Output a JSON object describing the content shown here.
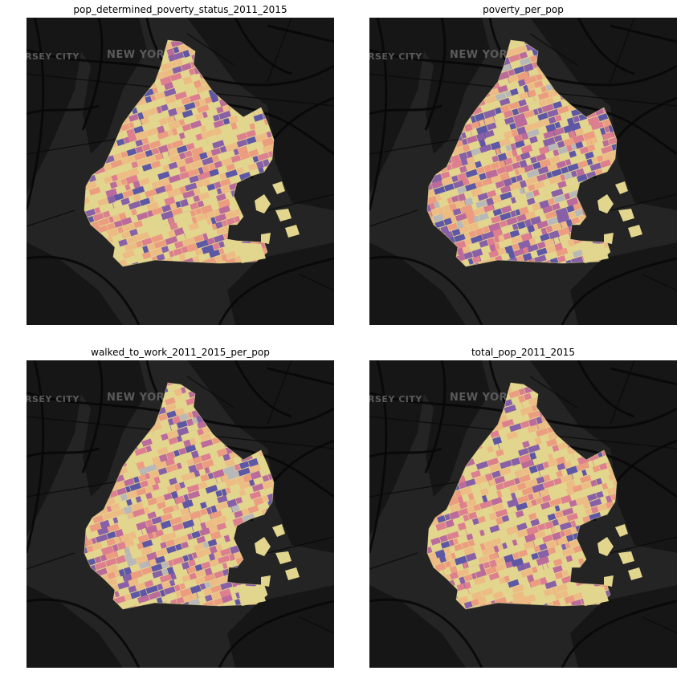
{
  "figure": {
    "panels": [
      {
        "id": "p1",
        "title": "pop_determined_poverty_status_2011_2015",
        "basemap_labels": {
          "city_left": "RSEY CITY",
          "city_center": "NEW YORK"
        },
        "palette": [
          "#e2d58e",
          "#edbb84",
          "#ec9d80",
          "#dd7f8f",
          "#bb6b9b",
          "#8860a8",
          "#5e57a6"
        ],
        "palette_weights": [
          0.36,
          0.18,
          0.14,
          0.1,
          0.09,
          0.07,
          0.06
        ],
        "nodata_color": "#b8b8b8",
        "nodata_share": 0.0,
        "seed": 11
      },
      {
        "id": "p2",
        "title": "poverty_per_pop",
        "basemap_labels": {
          "city_left": "RSEY CITY",
          "city_center": "NEW YORK"
        },
        "palette": [
          "#e2d58e",
          "#edbb84",
          "#ec9d80",
          "#dd7f8f",
          "#bb6b9b",
          "#8860a8",
          "#5e57a6"
        ],
        "palette_weights": [
          0.2,
          0.16,
          0.15,
          0.12,
          0.12,
          0.12,
          0.13
        ],
        "nodata_color": "#b8b8b8",
        "nodata_share": 0.05,
        "seed": 23
      },
      {
        "id": "p3",
        "title": "walked_to_work_2011_2015_per_pop",
        "basemap_labels": {
          "city_left": "RSEY CITY",
          "city_center": "NEW YORK"
        },
        "palette": [
          "#e2d58e",
          "#edbb84",
          "#ec9d80",
          "#dd7f8f",
          "#bb6b9b",
          "#8860a8",
          "#5e57a6"
        ],
        "palette_weights": [
          0.34,
          0.18,
          0.12,
          0.1,
          0.09,
          0.09,
          0.08
        ],
        "nodata_color": "#b8b8b8",
        "nodata_share": 0.04,
        "seed": 37
      },
      {
        "id": "p4",
        "title": "total_pop_2011_2015",
        "basemap_labels": {
          "city_left": "RSEY CITY",
          "city_center": "NEW YORK"
        },
        "palette": [
          "#e2d58e",
          "#edbb84",
          "#ec9d80",
          "#dd7f8f",
          "#bb6b9b",
          "#8860a8",
          "#5e57a6"
        ],
        "palette_weights": [
          0.38,
          0.18,
          0.13,
          0.1,
          0.08,
          0.07,
          0.06
        ],
        "nodata_color": "#b8b8b8",
        "nodata_share": 0.0,
        "seed": 53
      }
    ],
    "colors": {
      "water_background": "#242424",
      "land_dark": "#161616",
      "road": "#080808",
      "page_background": "#ffffff"
    }
  }
}
